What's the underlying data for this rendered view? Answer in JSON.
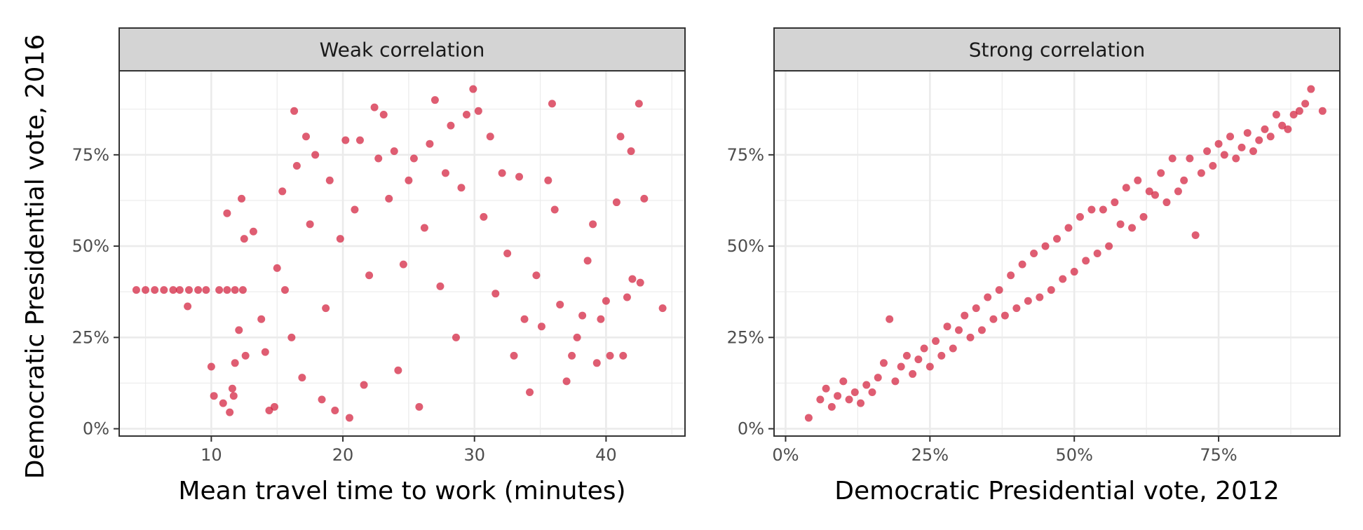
{
  "figure": {
    "ylabel": "Democratic Presidential vote, 2016",
    "point_color": "#D21F3C",
    "strip_fill": "#D4D4D4",
    "grid_color": "#EBEBEB"
  },
  "chart_data": [
    {
      "type": "scatter",
      "panel": "Weak correlation",
      "xlabel": "Mean travel time to work (minutes)",
      "ylabel": "Democratic Presidential vote, 2016",
      "xlim": [
        3,
        46
      ],
      "ylim": [
        -0.02,
        0.98
      ],
      "xticks": [
        10,
        20,
        30,
        40
      ],
      "xticklabels": [
        "10",
        "20",
        "30",
        "40"
      ],
      "yticks": [
        0,
        0.25,
        0.5,
        0.75
      ],
      "yticklabels": [
        "0%",
        "25%",
        "50%",
        "75%"
      ],
      "grid": true,
      "legend": "none",
      "series": [
        {
          "points": [
            [
              4.3,
              0.38
            ],
            [
              5.0,
              0.38
            ],
            [
              5.7,
              0.38
            ],
            [
              6.4,
              0.38
            ],
            [
              7.1,
              0.38
            ],
            [
              7.6,
              0.38
            ],
            [
              8.3,
              0.38
            ],
            [
              9.0,
              0.38
            ],
            [
              9.6,
              0.38
            ],
            [
              10.6,
              0.38
            ],
            [
              11.2,
              0.38
            ],
            [
              11.8,
              0.38
            ],
            [
              12.4,
              0.38
            ],
            [
              8.2,
              0.335
            ],
            [
              10.0,
              0.17
            ],
            [
              10.2,
              0.09
            ],
            [
              10.9,
              0.07
            ],
            [
              11.4,
              0.045
            ],
            [
              11.6,
              0.11
            ],
            [
              11.7,
              0.09
            ],
            [
              11.2,
              0.59
            ],
            [
              11.8,
              0.18
            ],
            [
              12.3,
              0.63
            ],
            [
              12.5,
              0.52
            ],
            [
              12.6,
              0.2
            ],
            [
              12.1,
              0.27
            ],
            [
              13.2,
              0.54
            ],
            [
              13.8,
              0.3
            ],
            [
              14.1,
              0.21
            ],
            [
              14.4,
              0.05
            ],
            [
              14.8,
              0.06
            ],
            [
              15.0,
              0.44
            ],
            [
              15.4,
              0.65
            ],
            [
              15.6,
              0.38
            ],
            [
              16.1,
              0.25
            ],
            [
              16.3,
              0.87
            ],
            [
              16.5,
              0.72
            ],
            [
              16.9,
              0.14
            ],
            [
              17.2,
              0.8
            ],
            [
              17.5,
              0.56
            ],
            [
              17.9,
              0.75
            ],
            [
              18.4,
              0.08
            ],
            [
              18.7,
              0.33
            ],
            [
              19.0,
              0.68
            ],
            [
              19.4,
              0.05
            ],
            [
              19.8,
              0.52
            ],
            [
              20.2,
              0.79
            ],
            [
              20.5,
              0.03
            ],
            [
              20.9,
              0.6
            ],
            [
              21.3,
              0.79
            ],
            [
              21.6,
              0.12
            ],
            [
              22.0,
              0.42
            ],
            [
              22.4,
              0.88
            ],
            [
              22.7,
              0.74
            ],
            [
              23.1,
              0.86
            ],
            [
              23.5,
              0.63
            ],
            [
              23.9,
              0.76
            ],
            [
              24.2,
              0.16
            ],
            [
              24.6,
              0.45
            ],
            [
              25.0,
              0.68
            ],
            [
              25.4,
              0.74
            ],
            [
              25.8,
              0.06
            ],
            [
              26.2,
              0.55
            ],
            [
              26.6,
              0.78
            ],
            [
              27.0,
              0.9
            ],
            [
              27.4,
              0.39
            ],
            [
              27.8,
              0.7
            ],
            [
              28.2,
              0.83
            ],
            [
              28.6,
              0.25
            ],
            [
              29.0,
              0.66
            ],
            [
              29.4,
              0.86
            ],
            [
              29.9,
              0.93
            ],
            [
              30.3,
              0.87
            ],
            [
              30.7,
              0.58
            ],
            [
              31.2,
              0.8
            ],
            [
              31.6,
              0.37
            ],
            [
              32.1,
              0.7
            ],
            [
              32.5,
              0.48
            ],
            [
              33.0,
              0.2
            ],
            [
              33.4,
              0.69
            ],
            [
              33.8,
              0.3
            ],
            [
              34.2,
              0.1
            ],
            [
              34.7,
              0.42
            ],
            [
              35.1,
              0.28
            ],
            [
              35.6,
              0.68
            ],
            [
              35.9,
              0.89
            ],
            [
              36.1,
              0.6
            ],
            [
              36.5,
              0.34
            ],
            [
              37.0,
              0.13
            ],
            [
              37.4,
              0.2
            ],
            [
              37.8,
              0.25
            ],
            [
              38.2,
              0.31
            ],
            [
              38.6,
              0.46
            ],
            [
              39.0,
              0.56
            ],
            [
              39.3,
              0.18
            ],
            [
              39.6,
              0.3
            ],
            [
              40.0,
              0.35
            ],
            [
              40.3,
              0.2
            ],
            [
              40.8,
              0.62
            ],
            [
              41.1,
              0.8
            ],
            [
              41.3,
              0.2
            ],
            [
              41.6,
              0.36
            ],
            [
              41.9,
              0.76
            ],
            [
              42.0,
              0.41
            ],
            [
              42.5,
              0.89
            ],
            [
              42.6,
              0.4
            ],
            [
              42.9,
              0.63
            ],
            [
              44.3,
              0.33
            ]
          ]
        }
      ]
    },
    {
      "type": "scatter",
      "panel": "Strong correlation",
      "xlabel": "Democratic Presidential vote, 2012",
      "ylabel": "Democratic Presidential vote, 2016",
      "xlim": [
        -0.02,
        0.96
      ],
      "ylim": [
        -0.02,
        0.98
      ],
      "xticks": [
        0,
        0.25,
        0.5,
        0.75
      ],
      "xticklabels": [
        "0%",
        "25%",
        "50%",
        "75%"
      ],
      "yticks": [
        0,
        0.25,
        0.5,
        0.75
      ],
      "yticklabels": [
        "0%",
        "25%",
        "50%",
        "75%"
      ],
      "grid": true,
      "legend": "none",
      "series": [
        {
          "points": [
            [
              0.04,
              0.03
            ],
            [
              0.06,
              0.08
            ],
            [
              0.07,
              0.11
            ],
            [
              0.08,
              0.06
            ],
            [
              0.09,
              0.09
            ],
            [
              0.1,
              0.13
            ],
            [
              0.11,
              0.08
            ],
            [
              0.12,
              0.1
            ],
            [
              0.13,
              0.07
            ],
            [
              0.14,
              0.12
            ],
            [
              0.15,
              0.1
            ],
            [
              0.16,
              0.14
            ],
            [
              0.17,
              0.18
            ],
            [
              0.18,
              0.3
            ],
            [
              0.19,
              0.13
            ],
            [
              0.2,
              0.17
            ],
            [
              0.21,
              0.2
            ],
            [
              0.22,
              0.15
            ],
            [
              0.23,
              0.19
            ],
            [
              0.24,
              0.22
            ],
            [
              0.25,
              0.17
            ],
            [
              0.26,
              0.24
            ],
            [
              0.27,
              0.2
            ],
            [
              0.28,
              0.28
            ],
            [
              0.29,
              0.22
            ],
            [
              0.3,
              0.27
            ],
            [
              0.31,
              0.31
            ],
            [
              0.32,
              0.25
            ],
            [
              0.33,
              0.33
            ],
            [
              0.34,
              0.27
            ],
            [
              0.35,
              0.36
            ],
            [
              0.36,
              0.3
            ],
            [
              0.37,
              0.38
            ],
            [
              0.38,
              0.31
            ],
            [
              0.39,
              0.42
            ],
            [
              0.4,
              0.33
            ],
            [
              0.41,
              0.45
            ],
            [
              0.42,
              0.35
            ],
            [
              0.43,
              0.48
            ],
            [
              0.44,
              0.36
            ],
            [
              0.45,
              0.5
            ],
            [
              0.46,
              0.38
            ],
            [
              0.47,
              0.52
            ],
            [
              0.48,
              0.41
            ],
            [
              0.49,
              0.55
            ],
            [
              0.5,
              0.43
            ],
            [
              0.51,
              0.58
            ],
            [
              0.52,
              0.46
            ],
            [
              0.53,
              0.6
            ],
            [
              0.54,
              0.48
            ],
            [
              0.55,
              0.6
            ],
            [
              0.56,
              0.5
            ],
            [
              0.57,
              0.62
            ],
            [
              0.58,
              0.56
            ],
            [
              0.59,
              0.66
            ],
            [
              0.6,
              0.55
            ],
            [
              0.61,
              0.68
            ],
            [
              0.62,
              0.58
            ],
            [
              0.63,
              0.65
            ],
            [
              0.64,
              0.64
            ],
            [
              0.65,
              0.7
            ],
            [
              0.66,
              0.62
            ],
            [
              0.67,
              0.74
            ],
            [
              0.68,
              0.65
            ],
            [
              0.69,
              0.68
            ],
            [
              0.7,
              0.74
            ],
            [
              0.71,
              0.53
            ],
            [
              0.72,
              0.7
            ],
            [
              0.73,
              0.76
            ],
            [
              0.74,
              0.72
            ],
            [
              0.75,
              0.78
            ],
            [
              0.76,
              0.75
            ],
            [
              0.77,
              0.8
            ],
            [
              0.78,
              0.74
            ],
            [
              0.79,
              0.77
            ],
            [
              0.8,
              0.81
            ],
            [
              0.81,
              0.76
            ],
            [
              0.82,
              0.79
            ],
            [
              0.83,
              0.82
            ],
            [
              0.84,
              0.8
            ],
            [
              0.85,
              0.86
            ],
            [
              0.86,
              0.83
            ],
            [
              0.87,
              0.82
            ],
            [
              0.88,
              0.86
            ],
            [
              0.89,
              0.87
            ],
            [
              0.9,
              0.89
            ],
            [
              0.91,
              0.93
            ],
            [
              0.93,
              0.87
            ]
          ]
        }
      ]
    }
  ]
}
